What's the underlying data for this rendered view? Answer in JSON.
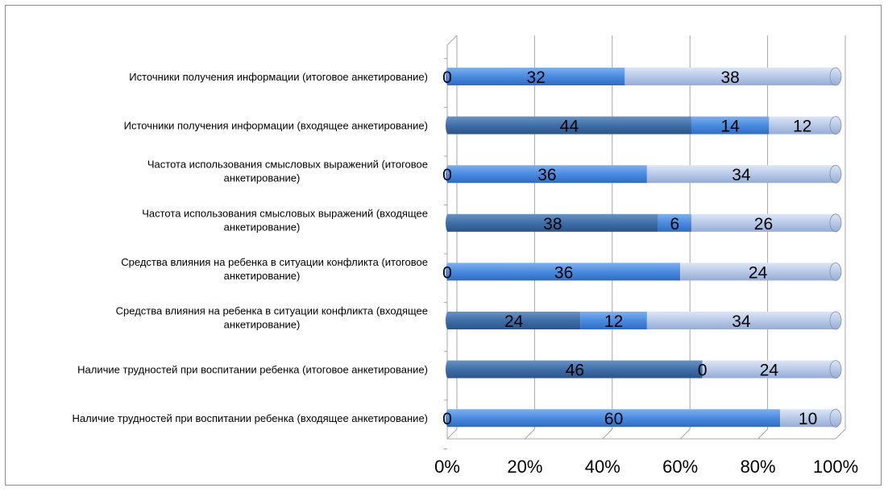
{
  "chart_data": {
    "type": "bar",
    "orientation": "horizontal",
    "stacked": "percent",
    "style": "3d-cylinder",
    "categories": [
      [
        "Источники получения информации (итоговое анкетирование)"
      ],
      [
        "Источники получения информации (входящее анкетирование)"
      ],
      [
        "Частота использования смысловых выражений (итоговое",
        "анкетирование)"
      ],
      [
        "Частота использования смысловых выражений (входящее",
        "анкетирование)"
      ],
      [
        "Средства влияния на ребенка в ситуации конфликта (итоговое",
        "анкетирование)"
      ],
      [
        "Средства влияния на ребенка в ситуации конфликта (входящее",
        "анкетирование)"
      ],
      [
        "Наличие трудностей при воспитании ребенка (итоговое анкетирование)"
      ],
      [
        "Наличие трудностей при воспитании ребенка (входящее анкетирование)"
      ]
    ],
    "series": [
      {
        "color": "#3f6fa8",
        "values": [
          0,
          44,
          0,
          38,
          0,
          24,
          46,
          0
        ]
      },
      {
        "color": "#4a8be0",
        "values": [
          32,
          14,
          36,
          6,
          36,
          12,
          0,
          60
        ]
      },
      {
        "color": "#b8c9e8",
        "values": [
          38,
          12,
          34,
          26,
          24,
          34,
          24,
          10
        ]
      }
    ],
    "x_ticks": [
      "0%",
      "20%",
      "40%",
      "60%",
      "80%",
      "100%"
    ],
    "xlim": [
      0,
      100
    ],
    "grid": true,
    "legend": "none",
    "title": "",
    "xlabel": "",
    "ylabel": ""
  }
}
